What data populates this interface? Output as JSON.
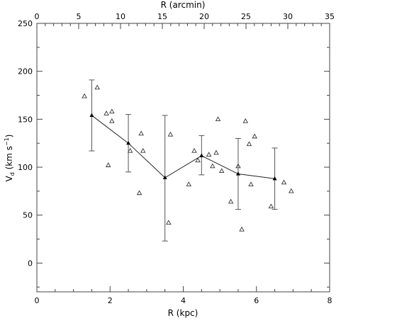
{
  "chart_data": {
    "type": "scatter",
    "xlabel": "R (kpc)",
    "x2label": "R (arcmin)",
    "ylabel_main": "V",
    "ylabel_sub": "d",
    "ylabel_units": " (km s",
    "ylabel_exp": "−1",
    "ylabel_close": ")",
    "xlim": [
      0,
      8
    ],
    "x2lim": [
      0,
      35
    ],
    "ylim": [
      -30,
      250
    ],
    "x_ticks": [
      0,
      2,
      4,
      6,
      8
    ],
    "x2_ticks": [
      0,
      5,
      10,
      15,
      20,
      25,
      30,
      35
    ],
    "y_ticks": [
      0,
      50,
      100,
      150,
      200,
      250
    ],
    "grid": false,
    "series": [
      {
        "marker": "open-triangle",
        "points": [
          [
            1.3,
            174
          ],
          [
            1.65,
            183
          ],
          [
            1.9,
            156
          ],
          [
            1.95,
            102
          ],
          [
            2.05,
            158
          ],
          [
            2.05,
            148
          ],
          [
            2.55,
            117
          ],
          [
            2.8,
            73
          ],
          [
            2.85,
            135
          ],
          [
            2.9,
            117
          ],
          [
            3.6,
            42
          ],
          [
            3.65,
            134
          ],
          [
            4.15,
            82
          ],
          [
            4.3,
            117
          ],
          [
            4.4,
            107
          ],
          [
            4.7,
            113
          ],
          [
            4.8,
            101
          ],
          [
            4.9,
            115
          ],
          [
            4.95,
            150
          ],
          [
            5.05,
            96
          ],
          [
            5.3,
            64
          ],
          [
            5.5,
            101
          ],
          [
            5.6,
            35
          ],
          [
            5.7,
            148
          ],
          [
            5.8,
            124
          ],
          [
            5.85,
            82
          ],
          [
            5.95,
            132
          ],
          [
            6.4,
            59
          ],
          [
            6.75,
            84
          ],
          [
            6.95,
            75
          ]
        ]
      },
      {
        "marker": "filled-triangle",
        "connected": true,
        "points": [
          {
            "x": 1.5,
            "y": 154,
            "err_low": 117,
            "err_high": 191
          },
          {
            "x": 2.5,
            "y": 125,
            "err_low": 95,
            "err_high": 155
          },
          {
            "x": 3.5,
            "y": 89,
            "err_low": 23,
            "err_high": 154
          },
          {
            "x": 4.5,
            "y": 112,
            "err_low": 92,
            "err_high": 133
          },
          {
            "x": 5.5,
            "y": 93,
            "err_low": 56,
            "err_high": 130
          },
          {
            "x": 6.5,
            "y": 88,
            "err_low": 56,
            "err_high": 120
          }
        ]
      }
    ]
  }
}
